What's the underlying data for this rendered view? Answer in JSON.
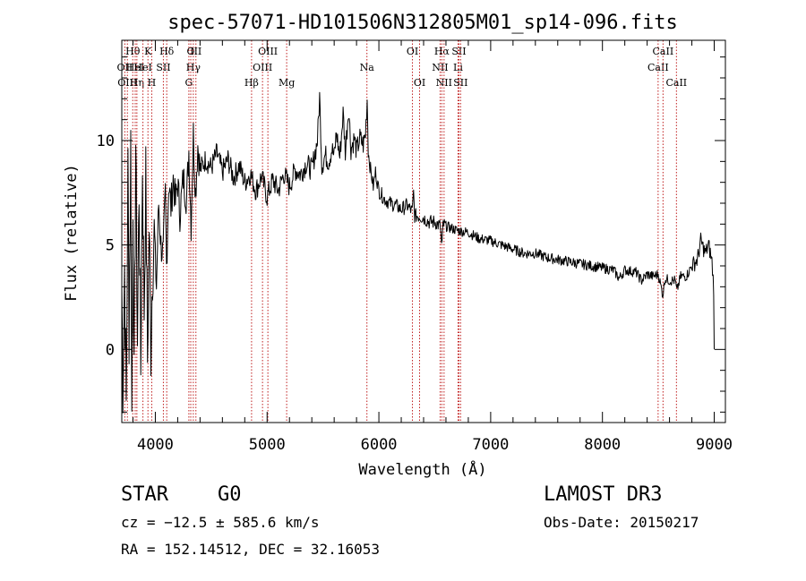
{
  "chart_data": {
    "type": "line",
    "title": "spec-57071-HD101506N312805M01_sp14-096.fits",
    "xlabel": "Wavelength (Å)",
    "ylabel": "Flux (relative)",
    "xlim": [
      3700,
      9100
    ],
    "ylim": [
      -3.5,
      14.8
    ],
    "x_ticks": [
      4000,
      5000,
      6000,
      7000,
      8000,
      9000
    ],
    "x_tick_labels": [
      "4000",
      "5000",
      "6000",
      "7000",
      "8000",
      "9000"
    ],
    "y_ticks": [
      0,
      5,
      10
    ],
    "y_tick_labels": [
      "0",
      "5",
      "10"
    ],
    "grid": false,
    "series": [
      {
        "name": "spectrum",
        "anchors": [
          [
            3700,
            3.0
          ],
          [
            3710,
            -1.5
          ],
          [
            3725,
            4.0
          ],
          [
            3740,
            -2.8
          ],
          [
            3755,
            8.5
          ],
          [
            3765,
            1.0
          ],
          [
            3780,
            9.8
          ],
          [
            3790,
            -3.2
          ],
          [
            3800,
            7.5
          ],
          [
            3810,
            -2.0
          ],
          [
            3825,
            10.0
          ],
          [
            3840,
            0.5
          ],
          [
            3855,
            7.8
          ],
          [
            3870,
            -1.0
          ],
          [
            3885,
            9.0
          ],
          [
            3900,
            2.0
          ],
          [
            3915,
            8.0
          ],
          [
            3930,
            -0.5
          ],
          [
            3945,
            6.0
          ],
          [
            3960,
            0.2
          ],
          [
            3975,
            4.0
          ],
          [
            3990,
            5.5
          ],
          [
            4010,
            3.0
          ],
          [
            4030,
            7.0
          ],
          [
            4050,
            5.0
          ],
          [
            4070,
            4.5
          ],
          [
            4090,
            7.5
          ],
          [
            4100,
            4.0
          ],
          [
            4120,
            8.0
          ],
          [
            4140,
            6.8
          ],
          [
            4160,
            8.2
          ],
          [
            4180,
            7.0
          ],
          [
            4200,
            8.0
          ],
          [
            4220,
            6.5
          ],
          [
            4250,
            8.2
          ],
          [
            4280,
            7.2
          ],
          [
            4300,
            9.5
          ],
          [
            4320,
            6.0
          ],
          [
            4340,
            10.3
          ],
          [
            4360,
            7.5
          ],
          [
            4380,
            9.8
          ],
          [
            4400,
            8.6
          ],
          [
            4450,
            9.1
          ],
          [
            4500,
            8.7
          ],
          [
            4550,
            9.4
          ],
          [
            4600,
            8.5
          ],
          [
            4650,
            9.1
          ],
          [
            4700,
            8.2
          ],
          [
            4750,
            8.8
          ],
          [
            4800,
            8.0
          ],
          [
            4850,
            8.4
          ],
          [
            4900,
            7.6
          ],
          [
            4950,
            8.3
          ],
          [
            5000,
            7.3
          ],
          [
            5050,
            8.1
          ],
          [
            5100,
            7.6
          ],
          [
            5150,
            8.4
          ],
          [
            5200,
            7.8
          ],
          [
            5250,
            8.6
          ],
          [
            5300,
            8.4
          ],
          [
            5350,
            8.9
          ],
          [
            5400,
            8.6
          ],
          [
            5450,
            10.0
          ],
          [
            5470,
            12.1
          ],
          [
            5490,
            8.8
          ],
          [
            5520,
            9.3
          ],
          [
            5550,
            9.0
          ],
          [
            5580,
            9.6
          ],
          [
            5600,
            9.2
          ],
          [
            5620,
            10.4
          ],
          [
            5650,
            9.2
          ],
          [
            5680,
            11.3
          ],
          [
            5700,
            9.5
          ],
          [
            5730,
            11.6
          ],
          [
            5750,
            9.6
          ],
          [
            5780,
            10.1
          ],
          [
            5800,
            9.5
          ],
          [
            5830,
            10.1
          ],
          [
            5860,
            9.8
          ],
          [
            5880,
            10.3
          ],
          [
            5895,
            12.0
          ],
          [
            5905,
            9.5
          ],
          [
            5920,
            8.8
          ],
          [
            5950,
            7.8
          ],
          [
            5970,
            8.5
          ],
          [
            6000,
            7.6
          ],
          [
            6050,
            7.2
          ],
          [
            6100,
            7.0
          ],
          [
            6150,
            6.9
          ],
          [
            6200,
            6.7
          ],
          [
            6250,
            6.9
          ],
          [
            6300,
            6.6
          ],
          [
            6310,
            7.5
          ],
          [
            6320,
            6.4
          ],
          [
            6350,
            6.4
          ],
          [
            6400,
            6.3
          ],
          [
            6450,
            6.1
          ],
          [
            6500,
            6.1
          ],
          [
            6550,
            5.9
          ],
          [
            6563,
            4.8
          ],
          [
            6575,
            6.0
          ],
          [
            6600,
            5.9
          ],
          [
            6700,
            5.7
          ],
          [
            6800,
            5.6
          ],
          [
            6900,
            5.3
          ],
          [
            7000,
            5.2
          ],
          [
            7100,
            5.0
          ],
          [
            7200,
            4.8
          ],
          [
            7300,
            4.6
          ],
          [
            7400,
            4.6
          ],
          [
            7500,
            4.4
          ],
          [
            7600,
            4.3
          ],
          [
            7700,
            4.2
          ],
          [
            7800,
            4.1
          ],
          [
            7900,
            4.0
          ],
          [
            8000,
            3.9
          ],
          [
            8100,
            3.8
          ],
          [
            8150,
            3.4
          ],
          [
            8200,
            3.8
          ],
          [
            8300,
            3.7
          ],
          [
            8350,
            3.3
          ],
          [
            8400,
            3.6
          ],
          [
            8450,
            3.5
          ],
          [
            8500,
            3.6
          ],
          [
            8540,
            2.6
          ],
          [
            8560,
            3.4
          ],
          [
            8600,
            3.3
          ],
          [
            8650,
            3.3
          ],
          [
            8665,
            2.8
          ],
          [
            8700,
            3.5
          ],
          [
            8750,
            3.5
          ],
          [
            8800,
            4.0
          ],
          [
            8850,
            4.3
          ],
          [
            8880,
            5.2
          ],
          [
            8920,
            4.6
          ],
          [
            8950,
            5.0
          ],
          [
            8980,
            4.2
          ],
          [
            8995,
            3.0
          ],
          [
            9000,
            0.0
          ]
        ]
      }
    ],
    "line_markers": [
      {
        "wavelength": 3727,
        "label": "OII",
        "row": 1
      },
      {
        "wavelength": 3750,
        "label": "OIII",
        "row": 2
      },
      {
        "wavelength": 3798,
        "label": "Hθ",
        "row": 0
      },
      {
        "wavelength": 3820,
        "label": "HeI",
        "row": 1
      },
      {
        "wavelength": 3835,
        "label": "Hη",
        "row": 2
      },
      {
        "wavelength": 3889,
        "label": "HeI",
        "row": 1
      },
      {
        "wavelength": 3934,
        "label": "K",
        "row": 0
      },
      {
        "wavelength": 3968,
        "label": "H",
        "row": 2
      },
      {
        "wavelength": 4072,
        "label": "SII",
        "row": 1
      },
      {
        "wavelength": 4102,
        "label": "Hδ",
        "row": 0
      },
      {
        "wavelength": 4300,
        "label": "G",
        "row": 2
      },
      {
        "wavelength": 4317,
        "label": "O",
        "row": 0
      },
      {
        "wavelength": 4340,
        "label": "Hγ",
        "row": 1
      },
      {
        "wavelength": 4363,
        "label": "III",
        "row": 0
      },
      {
        "wavelength": 4861,
        "label": "Hβ",
        "row": 2
      },
      {
        "wavelength": 4959,
        "label": "OIII",
        "row": 1
      },
      {
        "wavelength": 5007,
        "label": "OIII",
        "row": 0
      },
      {
        "wavelength": 5175,
        "label": "Mg",
        "row": 2
      },
      {
        "wavelength": 5893,
        "label": "Na",
        "row": 1
      },
      {
        "wavelength": 6300,
        "label": "OI",
        "row": 0
      },
      {
        "wavelength": 6364,
        "label": "OI",
        "row": 2
      },
      {
        "wavelength": 6548,
        "label": "NII",
        "row": 1
      },
      {
        "wavelength": 6563,
        "label": "Hα",
        "row": 0
      },
      {
        "wavelength": 6583,
        "label": "NII",
        "row": 2
      },
      {
        "wavelength": 6708,
        "label": "Li",
        "row": 1
      },
      {
        "wavelength": 6716,
        "label": "SII",
        "row": 0
      },
      {
        "wavelength": 6731,
        "label": "SII",
        "row": 2
      },
      {
        "wavelength": 8498,
        "label": "CaII",
        "row": 1
      },
      {
        "wavelength": 8542,
        "label": "CaII",
        "row": 0
      },
      {
        "wavelength": 8662,
        "label": "CaII",
        "row": 2
      }
    ]
  },
  "info": {
    "object_class": "STAR",
    "subclass": "G0",
    "survey": "LAMOST DR3",
    "redshift_line": "cz = −12.5 ± 585.6 km/s",
    "obs_date_line": "Obs-Date: 20150217",
    "coords_line": "RA = 152.14512, DEC =  32.16053"
  },
  "colors": {
    "spectrum": "#000000",
    "marker": "#c02020",
    "axes": "#000000"
  }
}
